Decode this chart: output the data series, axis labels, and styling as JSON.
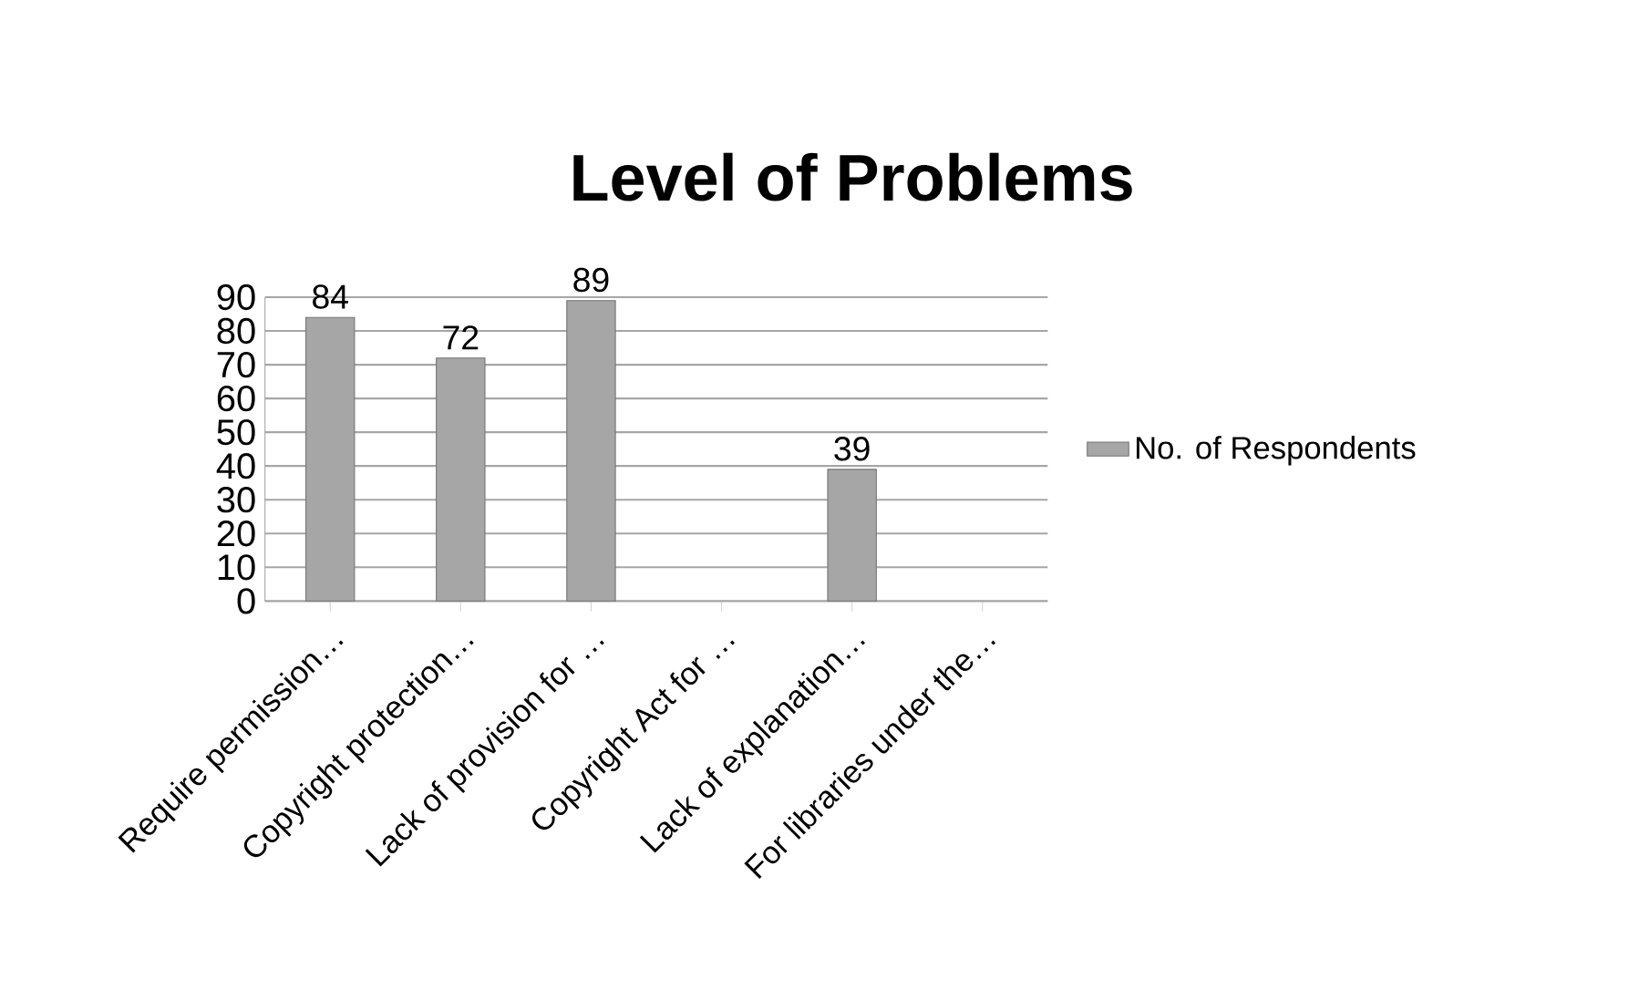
{
  "chart_data": {
    "type": "bar",
    "title": "Level of Problems",
    "categories": [
      "Require permission…",
      "Copyright protection…",
      "Lack of provision for …",
      "Copyright Act for …",
      "Lack of explanation…",
      "For libraries under the…"
    ],
    "series": [
      {
        "name": "No. of Respondents",
        "color": "#a6a6a6",
        "values": [
          84,
          72,
          89,
          null,
          39,
          null
        ]
      }
    ],
    "ylim": [
      0,
      90
    ],
    "yticks": [
      0,
      10,
      20,
      30,
      40,
      50,
      60,
      70,
      80,
      90
    ],
    "grid": "y",
    "legend": "right",
    "data_labels": true
  }
}
